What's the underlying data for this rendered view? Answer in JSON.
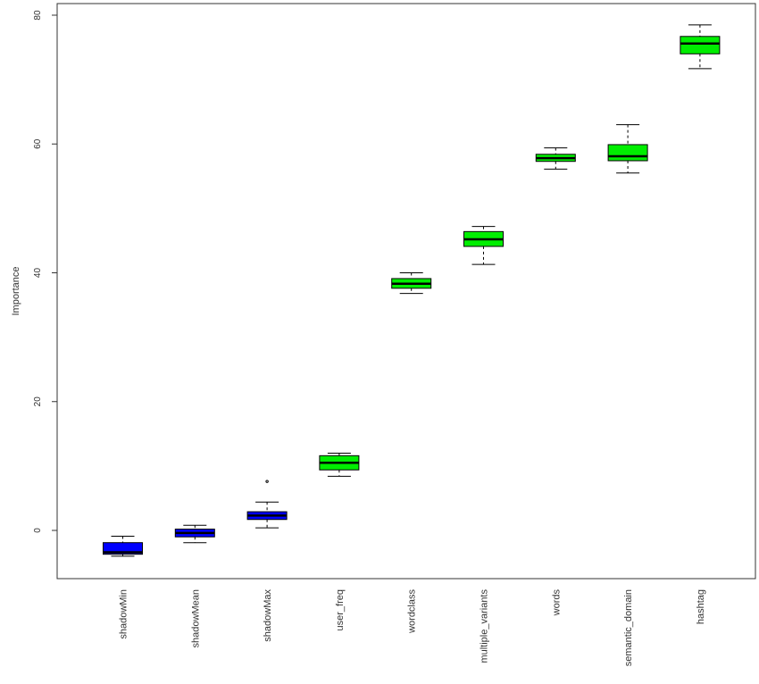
{
  "chart_data": {
    "type": "box",
    "title": "",
    "xlabel": "",
    "ylabel": "Importance",
    "ylim": [
      -7.5,
      82
    ],
    "yticks": [
      0,
      20,
      40,
      60,
      80
    ],
    "grid": false,
    "legend": "none",
    "colors": {
      "shadow": "#0000ff",
      "feature": "#00ee00",
      "line": "#000000"
    },
    "boxes": [
      {
        "label": "shadowMin",
        "min": -4.0,
        "q1": -3.7,
        "median": -3.4,
        "q3": -1.9,
        "max": -0.9,
        "outliers": [],
        "group": "shadow"
      },
      {
        "label": "shadowMean",
        "min": -1.9,
        "q1": -1.0,
        "median": -0.4,
        "q3": 0.2,
        "max": 0.8,
        "outliers": [],
        "group": "shadow"
      },
      {
        "label": "shadowMax",
        "min": 0.4,
        "q1": 1.7,
        "median": 2.3,
        "q3": 2.9,
        "max": 4.4,
        "outliers": [
          7.6
        ],
        "group": "shadow"
      },
      {
        "label": "user_freq",
        "min": 8.4,
        "q1": 9.4,
        "median": 10.5,
        "q3": 11.6,
        "max": 12.0,
        "outliers": [],
        "group": "feature"
      },
      {
        "label": "wordclass",
        "min": 36.8,
        "q1": 37.6,
        "median": 38.3,
        "q3": 39.1,
        "max": 40.0,
        "outliers": [],
        "group": "feature"
      },
      {
        "label": "multiple_variants",
        "min": 41.3,
        "q1": 44.1,
        "median": 45.2,
        "q3": 46.4,
        "max": 47.2,
        "outliers": [],
        "group": "feature"
      },
      {
        "label": "words",
        "min": 56.1,
        "q1": 57.3,
        "median": 57.8,
        "q3": 58.4,
        "max": 59.4,
        "outliers": [],
        "group": "feature"
      },
      {
        "label": "semantic_domain",
        "min": 55.5,
        "q1": 57.4,
        "median": 58.1,
        "q3": 59.9,
        "max": 63.0,
        "outliers": [],
        "group": "feature"
      },
      {
        "label": "hashtag",
        "min": 71.7,
        "q1": 74.0,
        "median": 75.6,
        "q3": 76.7,
        "max": 78.5,
        "outliers": [],
        "group": "feature"
      }
    ]
  }
}
